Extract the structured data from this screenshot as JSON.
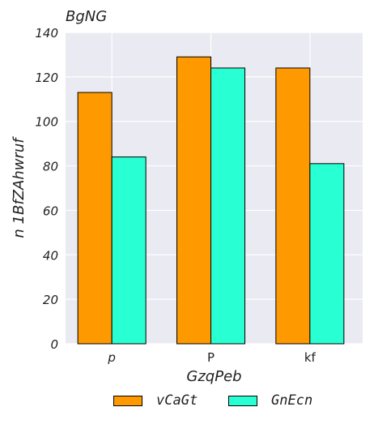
{
  "chart_data": {
    "type": "bar",
    "title": "BgNG",
    "xlabel": "GzqPeb",
    "ylabel": "n 1BfZAhwruf",
    "categories": [
      "p",
      "P",
      "kf"
    ],
    "series": [
      {
        "name": "vCaGt",
        "values": [
          113,
          129,
          124
        ],
        "color": "#ff9900"
      },
      {
        "name": "GnEcn",
        "values": [
          84,
          124,
          81
        ],
        "color": "#28ffd2"
      }
    ],
    "ylim": [
      0,
      140
    ],
    "yticks": [
      0,
      20,
      40,
      60,
      80,
      100,
      120,
      140
    ],
    "grid": true,
    "legend": "bottom"
  }
}
